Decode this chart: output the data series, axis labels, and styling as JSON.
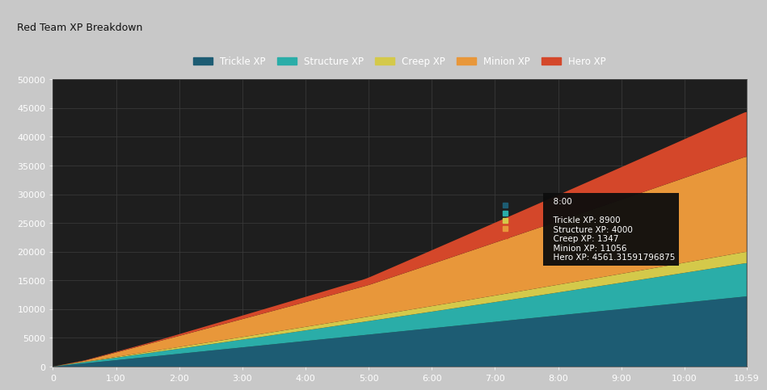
{
  "title": "Red Team XP Breakdown",
  "title_bg_color": "#c8c8c8",
  "plot_bg_color": "#1e1e1e",
  "grid_color": "#3a3a3a",
  "text_color": "#ffffff",
  "series": [
    "Trickle XP",
    "Structure XP",
    "Creep XP",
    "Minion XP",
    "Hero XP"
  ],
  "colors": [
    "#1d5c73",
    "#2aada8",
    "#d4c94a",
    "#e8973a",
    "#d4472a"
  ],
  "ylim": [
    0,
    50000
  ],
  "x_max_minutes": 659,
  "x_ticks": [
    0,
    60,
    120,
    180,
    240,
    300,
    360,
    420,
    480,
    540,
    600,
    659
  ],
  "x_tick_labels": [
    "0",
    "1:00",
    "2:00",
    "3:00",
    "4:00",
    "5:00",
    "6:00",
    "7:00",
    "8:00",
    "9:00",
    "10:00",
    "10:59"
  ],
  "yticks": [
    0,
    5000,
    10000,
    15000,
    20000,
    25000,
    30000,
    35000,
    40000,
    45000,
    50000
  ],
  "tooltip_time": "8:00",
  "tooltip_x": 480,
  "tooltip_y": 25000,
  "tooltip_values": [
    8900,
    4000,
    1347,
    11056,
    4561.31591796875
  ],
  "tooltip_colors": [
    "#1d5c73",
    "#2aada8",
    "#d4c94a",
    "#e8973a",
    "#d4472a"
  ]
}
